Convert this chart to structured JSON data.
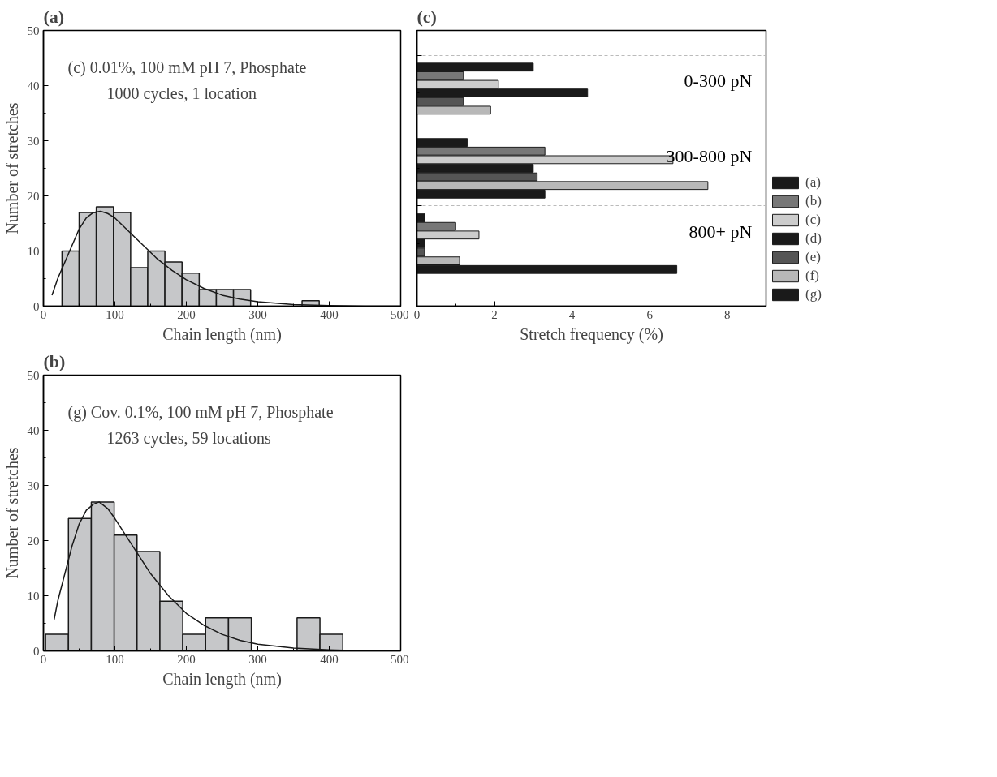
{
  "chart_data": [
    {
      "type": "histogram",
      "title": "(a)",
      "xlabel": "Chain length (nm)",
      "ylabel": "Number of stretches",
      "annotations": [
        "(c)   0.01%, 100 mM pH 7, Phosphate",
        "1000 cycles, 1 location"
      ],
      "xlim": [
        0,
        500
      ],
      "xticks": [
        0,
        100,
        200,
        300,
        400,
        500
      ],
      "ylim": [
        0,
        50
      ],
      "yticks": [
        0,
        10,
        20,
        30,
        40,
        50
      ],
      "series": [
        {
          "type": "histogram",
          "color": "#c6c7c9",
          "bins": [
            26,
            50,
            74,
            98,
            122,
            146,
            170,
            194,
            218,
            242,
            266,
            290,
            314,
            338,
            362,
            386
          ],
          "values": [
            10,
            17,
            18,
            17,
            7,
            10,
            8,
            6,
            3,
            3,
            3,
            0,
            0,
            0,
            1
          ]
        },
        {
          "type": "line",
          "color": "#1a1a1a",
          "x": [
            12,
            20,
            30,
            40,
            50,
            60,
            70,
            80,
            90,
            100,
            120,
            140,
            160,
            180,
            200,
            225,
            250,
            275,
            300,
            350,
            400,
            450,
            500
          ],
          "values": [
            2,
            5,
            8,
            11,
            14,
            16,
            17,
            17.2,
            16.8,
            16,
            13.5,
            11,
            8.5,
            6.5,
            4.8,
            3.2,
            2,
            1.3,
            0.8,
            0.3,
            0.1,
            0.0,
            0
          ]
        }
      ]
    },
    {
      "type": "bar",
      "orientation": "horizontal",
      "title": "(c)",
      "xlabel": "Stretch frequency (%)",
      "categories": [
        "0-300 pN",
        "300-800 pN",
        "800+ pN"
      ],
      "xlim": [
        0,
        9
      ],
      "xticks": [
        0,
        2,
        4,
        6,
        8
      ],
      "tick_labels": "x",
      "grid": "y",
      "legend": "right",
      "series": [
        {
          "name": "(a)",
          "color": "#1a1a1a",
          "values": [
            3.0,
            1.3,
            0.2
          ]
        },
        {
          "name": "(b)",
          "color": "#777777",
          "values": [
            1.2,
            3.3,
            1.0
          ]
        },
        {
          "name": "(c)",
          "color": "#cccccc",
          "values": [
            2.1,
            6.6,
            1.6
          ]
        },
        {
          "name": "(d)",
          "color": "#1a1a1a",
          "values": [
            4.4,
            3.0,
            0.2
          ]
        },
        {
          "name": "(e)",
          "color": "#555555",
          "values": [
            1.2,
            3.1,
            0.2
          ]
        },
        {
          "name": "(f)",
          "color": "#b8b8b8",
          "values": [
            1.9,
            7.5,
            1.1
          ]
        },
        {
          "name": "(g)",
          "color": "#1a1a1a",
          "values": [
            null,
            3.3,
            6.7
          ]
        }
      ]
    },
    {
      "type": "histogram",
      "title": "(b)",
      "xlabel": "Chain length (nm)",
      "ylabel": "Number of stretches",
      "annotations": [
        "(g)   Cov. 0.1%, 100 mM pH 7, Phosphate",
        "1263 cycles, 59 locations"
      ],
      "xlim": [
        0,
        500
      ],
      "xticks": [
        0,
        100,
        200,
        300,
        400,
        500
      ],
      "ylim": [
        0,
        50
      ],
      "yticks": [
        0,
        10,
        20,
        30,
        40,
        50
      ],
      "series": [
        {
          "type": "histogram",
          "color": "#c6c7c9",
          "bins": [
            3,
            35,
            67,
            99,
            131,
            163,
            195,
            227,
            259,
            291,
            323,
            355,
            387,
            419
          ],
          "values": [
            3,
            24,
            27,
            21,
            18,
            9,
            3,
            6,
            6,
            0,
            0,
            6,
            3
          ]
        },
        {
          "type": "line",
          "color": "#1a1a1a",
          "x": [
            15,
            20,
            30,
            40,
            50,
            60,
            70,
            78,
            90,
            100,
            125,
            150,
            175,
            200,
            225,
            250,
            275,
            300,
            350,
            400,
            450,
            500
          ],
          "values": [
            5.7,
            9,
            14,
            19,
            23,
            25.5,
            26.6,
            27,
            25.8,
            24,
            19,
            14,
            10,
            6.8,
            4.6,
            3,
            1.9,
            1.2,
            0.5,
            0.2,
            0.0,
            0
          ]
        }
      ]
    }
  ]
}
